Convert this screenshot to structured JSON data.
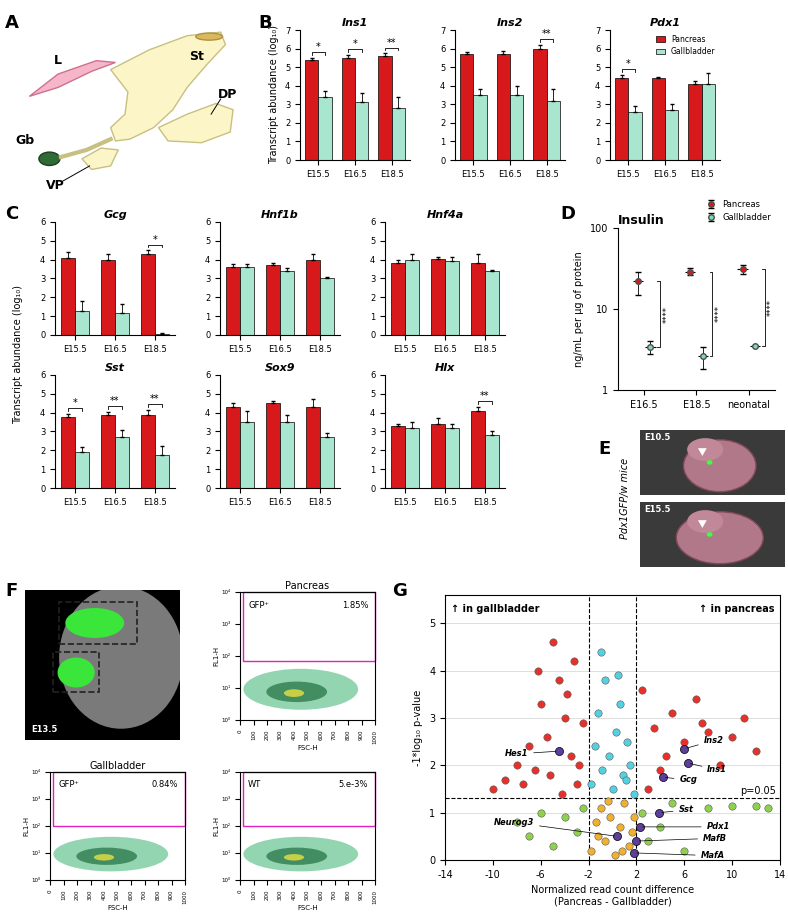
{
  "panel_labels": [
    "A",
    "B",
    "C",
    "D",
    "E",
    "F",
    "G"
  ],
  "diagram": {
    "labels": [
      "L",
      "St",
      "DP",
      "Gb",
      "VP"
    ]
  },
  "panel_C_y_label": "Transcript abundance (log₁₀)",
  "images": {
    "E": {
      "label": "Pdx1GFP/w mice",
      "stages": [
        "E10.5",
        "E15.5"
      ]
    },
    "F": {
      "stage": "E13.5"
    }
  },
  "chart_data": [
    {
      "type": "bar",
      "title": "Ins1",
      "y_label": "Transcript abundance (log₁₀)",
      "categories": [
        "E15.5",
        "E16.5",
        "E18.5"
      ],
      "series": [
        {
          "name": "Pancreas",
          "color": "#d7191c",
          "values": [
            5.4,
            5.5,
            5.6
          ],
          "errors": [
            0.1,
            0.15,
            0.15
          ]
        },
        {
          "name": "Gallbladder",
          "color": "#a8e6cf",
          "values": [
            3.4,
            3.1,
            2.8
          ],
          "errors": [
            0.3,
            0.5,
            0.6
          ]
        }
      ],
      "significance": [
        "*",
        "*",
        "**"
      ],
      "ylim": [
        0,
        7
      ],
      "yticks": [
        0,
        1,
        2,
        3,
        4,
        5,
        6,
        7
      ]
    },
    {
      "type": "bar",
      "title": "Ins2",
      "categories": [
        "E15.5",
        "E16.5",
        "E18.5"
      ],
      "series": [
        {
          "name": "Pancreas",
          "color": "#d7191c",
          "values": [
            5.7,
            5.7,
            6.0
          ],
          "errors": [
            0.1,
            0.15,
            0.2
          ]
        },
        {
          "name": "Gallbladder",
          "color": "#a8e6cf",
          "values": [
            3.5,
            3.5,
            3.2
          ],
          "errors": [
            0.3,
            0.5,
            0.6
          ]
        }
      ],
      "significance": [
        null,
        null,
        "**"
      ],
      "ylim": [
        0,
        7
      ],
      "yticks": [
        0,
        1,
        2,
        3,
        4,
        5,
        6,
        7
      ]
    },
    {
      "type": "bar",
      "title": "Pdx1",
      "categories": [
        "E15.5",
        "E16.5",
        "E18.5"
      ],
      "legend": "upper right",
      "series": [
        {
          "name": "Pancreas",
          "color": "#d7191c",
          "values": [
            4.4,
            4.4,
            4.1
          ],
          "errors": [
            0.2,
            0.05,
            0.15
          ]
        },
        {
          "name": "Gallbladder",
          "color": "#a8e6cf",
          "values": [
            2.6,
            2.7,
            4.1
          ],
          "errors": [
            0.3,
            0.3,
            0.6
          ]
        }
      ],
      "significance": [
        "*",
        null,
        null
      ],
      "ylim": [
        0,
        7
      ],
      "yticks": [
        0,
        1,
        2,
        3,
        4,
        5,
        6,
        7
      ]
    },
    {
      "type": "bar",
      "title": "Gcg",
      "categories": [
        "E15.5",
        "E16.5",
        "E18.5"
      ],
      "series": [
        {
          "name": "Pancreas",
          "color": "#d7191c",
          "values": [
            4.1,
            4.0,
            4.3
          ],
          "errors": [
            0.3,
            0.3,
            0.2
          ]
        },
        {
          "name": "Gallbladder",
          "color": "#a8e6cf",
          "values": [
            1.3,
            1.15,
            0.05
          ],
          "errors": [
            0.5,
            0.5,
            0.05
          ]
        }
      ],
      "significance": [
        null,
        null,
        "*"
      ],
      "ylim": [
        0,
        6
      ],
      "yticks": [
        0,
        1,
        2,
        3,
        4,
        5,
        6
      ]
    },
    {
      "type": "bar",
      "title": "Hnf1b",
      "categories": [
        "E15.5",
        "E16.5",
        "E18.5"
      ],
      "series": [
        {
          "name": "Pancreas",
          "color": "#d7191c",
          "values": [
            3.6,
            3.7,
            4.0
          ],
          "errors": [
            0.15,
            0.1,
            0.3
          ]
        },
        {
          "name": "Gallbladder",
          "color": "#a8e6cf",
          "values": [
            3.6,
            3.4,
            3.0
          ],
          "errors": [
            0.15,
            0.15,
            0.1
          ]
        }
      ],
      "significance": [
        null,
        null,
        null
      ],
      "ylim": [
        0,
        6
      ],
      "yticks": [
        0,
        1,
        2,
        3,
        4,
        5,
        6
      ]
    },
    {
      "type": "bar",
      "title": "Hnf4a",
      "categories": [
        "E15.5",
        "E16.5",
        "E18.5"
      ],
      "series": [
        {
          "name": "Pancreas",
          "color": "#d7191c",
          "values": [
            3.8,
            4.05,
            3.8
          ],
          "errors": [
            0.2,
            0.1,
            0.5
          ]
        },
        {
          "name": "Gallbladder",
          "color": "#a8e6cf",
          "values": [
            4.0,
            3.95,
            3.4
          ],
          "errors": [
            0.3,
            0.2,
            0.05
          ]
        }
      ],
      "significance": [
        null,
        null,
        null
      ],
      "ylim": [
        0,
        6
      ],
      "yticks": [
        0,
        1,
        2,
        3,
        4,
        5,
        6
      ]
    },
    {
      "type": "bar",
      "title": "Sst",
      "categories": [
        "E15.5",
        "E16.5",
        "E18.5"
      ],
      "series": [
        {
          "name": "Pancreas",
          "color": "#d7191c",
          "values": [
            3.75,
            3.9,
            3.9
          ],
          "errors": [
            0.2,
            0.15,
            0.25
          ]
        },
        {
          "name": "Gallbladder",
          "color": "#a8e6cf",
          "values": [
            1.9,
            2.7,
            1.75
          ],
          "errors": [
            0.3,
            0.4,
            0.5
          ]
        }
      ],
      "significance": [
        "*",
        "**",
        "**"
      ],
      "ylim": [
        0,
        6
      ],
      "yticks": [
        0,
        1,
        2,
        3,
        4,
        5,
        6
      ]
    },
    {
      "type": "bar",
      "title": "Sox9",
      "categories": [
        "E15.5",
        "E16.5",
        "E18.5"
      ],
      "series": [
        {
          "name": "Pancreas",
          "color": "#d7191c",
          "values": [
            4.3,
            4.5,
            4.3
          ],
          "errors": [
            0.2,
            0.1,
            0.4
          ]
        },
        {
          "name": "Gallbladder",
          "color": "#a8e6cf",
          "values": [
            3.5,
            3.5,
            2.7
          ],
          "errors": [
            0.6,
            0.4,
            0.2
          ]
        }
      ],
      "significance": [
        null,
        null,
        null
      ],
      "ylim": [
        0,
        6
      ],
      "yticks": [
        0,
        1,
        2,
        3,
        4,
        5,
        6
      ]
    },
    {
      "type": "bar",
      "title": "Hlx",
      "categories": [
        "E15.5",
        "E16.5",
        "E18.5"
      ],
      "series": [
        {
          "name": "Pancreas",
          "color": "#d7191c",
          "values": [
            3.3,
            3.4,
            4.1
          ],
          "errors": [
            0.1,
            0.3,
            0.2
          ]
        },
        {
          "name": "Gallbladder",
          "color": "#a8e6cf",
          "values": [
            3.2,
            3.2,
            2.8
          ],
          "errors": [
            0.3,
            0.2,
            0.2
          ]
        }
      ],
      "significance": [
        null,
        null,
        "**"
      ],
      "ylim": [
        0,
        6
      ],
      "yticks": [
        0,
        1,
        2,
        3,
        4,
        5,
        6
      ]
    },
    {
      "type": "dot",
      "title": "Insulin",
      "y_label": "ng/mL per µg of protein",
      "log": "y",
      "legend": "upper right",
      "categories": [
        "E16.5",
        "E18.5",
        "neonatal"
      ],
      "series": [
        {
          "name": "Pancreas",
          "color": "#d7191c",
          "values": [
            22,
            29,
            31
          ],
          "errors": [
            7,
            3,
            4
          ]
        },
        {
          "name": "Gallbladder",
          "color": "#7fdcb0",
          "values": [
            3.4,
            2.6,
            3.5
          ],
          "errors": [
            0.6,
            0.8,
            0
          ]
        }
      ],
      "significance": [
        "****",
        "****",
        "****"
      ],
      "ylim": [
        1,
        100
      ],
      "yticks": [
        1,
        10,
        100
      ]
    },
    {
      "type": "scatter",
      "x_label": "Normalized read count difference\n(Pancreas - Gallbladder)",
      "y_label": "-1*log₁₀ p-value",
      "annotations": [
        "↑ in gallbladder",
        "↑ in pancreas"
      ],
      "threshold": {
        "y": 1.3,
        "label": "p=0.05"
      },
      "fold_lines": [
        -2,
        2
      ],
      "grid": true,
      "xlim": [
        -14,
        14
      ],
      "xticks": [
        -14,
        -10,
        -6,
        -2,
        2,
        6,
        10,
        14
      ],
      "ylim": [
        0,
        5.6
      ],
      "yticks": [
        0,
        1,
        2,
        3,
        4,
        5
      ],
      "series": [
        {
          "color": "#e8302a",
          "x": [
            -3,
            -3.5,
            -4,
            -4.5,
            -5,
            -5.5,
            -6,
            -6.5,
            -7,
            -8,
            -9,
            -10,
            -3.2,
            -4.2,
            -5.2,
            -2.5,
            -3.8,
            -6.2,
            -7.5,
            -2.8,
            3,
            3.5,
            4,
            5,
            6,
            7,
            8,
            9,
            10,
            11,
            12,
            2.5,
            4.5,
            7.5
          ],
          "y": [
            1.6,
            2.2,
            3.0,
            3.8,
            4.6,
            2.6,
            3.3,
            1.9,
            2.4,
            2.0,
            1.7,
            1.5,
            4.2,
            1.4,
            1.8,
            2.9,
            3.5,
            4.0,
            1.6,
            2.0,
            1.5,
            2.8,
            1.9,
            3.1,
            2.5,
            3.4,
            2.7,
            2.0,
            2.6,
            3.0,
            2.3,
            3.6,
            2.2,
            2.9
          ]
        },
        {
          "color": "#55d0e0",
          "x": [
            -1.8,
            -1.5,
            -1.2,
            -0.9,
            -0.6,
            -0.3,
            0,
            0.3,
            0.6,
            0.9,
            1.2,
            1.5,
            1.8,
            -1.0,
            0.5,
            1.1
          ],
          "y": [
            1.6,
            2.4,
            3.1,
            1.9,
            3.8,
            2.2,
            1.5,
            2.7,
            3.3,
            1.8,
            2.5,
            2.0,
            1.4,
            4.4,
            3.9,
            1.7
          ]
        },
        {
          "color": "#8fd14f",
          "x": [
            -2.5,
            -3,
            -4,
            -5,
            -6,
            -7,
            -8,
            2.5,
            3,
            4,
            5,
            6,
            8,
            10,
            12,
            13
          ],
          "y": [
            1.1,
            0.6,
            0.9,
            0.3,
            1.0,
            0.5,
            0.8,
            1.0,
            0.4,
            0.7,
            1.2,
            0.2,
            1.1,
            1.15,
            1.15,
            1.1
          ]
        },
        {
          "color": "#f0b030",
          "x": [
            -1.8,
            -1.4,
            -1.0,
            -0.6,
            -0.2,
            0.2,
            0.6,
            1.0,
            1.4,
            1.8,
            -1.2,
            0.8,
            -0.4,
            1.6
          ],
          "y": [
            0.2,
            0.8,
            1.1,
            0.4,
            0.9,
            0.1,
            0.7,
            1.2,
            0.3,
            0.9,
            0.5,
            0.2,
            1.25,
            0.6
          ]
        }
      ],
      "genes": {
        "color": "#5b3f9a",
        "names": [
          "Hes1",
          "Ins2",
          "Ins1",
          "Gcg",
          "Sst",
          "Pdx1",
          "MafB",
          "MafA",
          "Neurog3"
        ],
        "x": [
          -4.5,
          6.0,
          6.3,
          4.2,
          3.9,
          2.3,
          2.0,
          1.8,
          0.4
        ],
        "y": [
          2.3,
          2.35,
          2.05,
          1.75,
          1.0,
          0.7,
          0.4,
          0.15,
          0.5
        ]
      }
    },
    {
      "type": "flow",
      "title": "Pancreas",
      "gate_label": "GFP⁺",
      "percent": "1.85%",
      "gate_x": [
        20,
        1000
      ],
      "gate_y": [
        70,
        10000
      ],
      "x_label": "FSC-H",
      "y_label": "FL1-H",
      "log": "y",
      "xlim": [
        0,
        1000
      ],
      "xticks": [
        0,
        100,
        200,
        300,
        400,
        500,
        600,
        700,
        800,
        900,
        1000
      ],
      "ylim": [
        1,
        10000
      ],
      "yticks": [
        {
          "value": 1,
          "label": "10⁰"
        },
        {
          "value": 10,
          "label": "10¹"
        },
        {
          "value": 100,
          "label": "10²"
        },
        {
          "value": 1000,
          "label": "10³"
        },
        {
          "value": 10000,
          "label": "10⁴"
        }
      ]
    },
    {
      "type": "flow",
      "title": "Gallbladder",
      "gate_label": "GFP⁺",
      "percent": "0.84%",
      "gate_x": [
        20,
        1000
      ],
      "gate_y": [
        100,
        10000
      ],
      "x_label": "FSC-H",
      "y_label": "FL1-H",
      "log": "y",
      "xlim": [
        0,
        1000
      ],
      "xticks": [
        0,
        100,
        200,
        300,
        400,
        500,
        600,
        700,
        800,
        900,
        1000
      ],
      "ylim": [
        1,
        10000
      ],
      "yticks": [
        {
          "value": 1,
          "label": "10⁰"
        },
        {
          "value": 10,
          "label": "10¹"
        },
        {
          "value": 100,
          "label": "10²"
        },
        {
          "value": 1000,
          "label": "10³"
        },
        {
          "value": 10000,
          "label": "10⁴"
        }
      ]
    },
    {
      "type": "flow",
      "gate_label": "WT",
      "percent": "5.e-3%",
      "gate_x": [
        20,
        1000
      ],
      "gate_y": [
        100,
        10000
      ],
      "x_label": "FSC-H",
      "y_label": "FL1-H",
      "log": "y",
      "xlim": [
        0,
        1000
      ],
      "xticks": [
        0,
        100,
        200,
        300,
        400,
        500,
        600,
        700,
        800,
        900,
        1000
      ],
      "ylim": [
        1,
        10000
      ],
      "yticks": [
        {
          "value": 1,
          "label": "10⁰"
        },
        {
          "value": 10,
          "label": "10¹"
        },
        {
          "value": 100,
          "label": "10²"
        },
        {
          "value": 1000,
          "label": "10³"
        },
        {
          "value": 10000,
          "label": "10⁴"
        }
      ]
    }
  ]
}
